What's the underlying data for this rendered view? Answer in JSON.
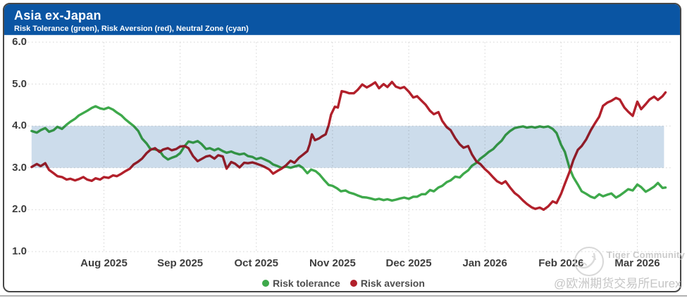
{
  "header": {
    "title": "Asia ex-Japan",
    "subtitle": "Risk Tolerance (green), Risk Aversion (red), Neutral Zone (cyan)"
  },
  "colors": {
    "header_bg": "#0A55A3",
    "risk_tolerance_green": "#3EA94B",
    "risk_aversion_red": "#B2202B",
    "neutral_zone_cyan": "#C8D9E9",
    "axis_text": "#3D3D3D",
    "gridline": "#D3D3D3"
  },
  "legend": {
    "items": [
      {
        "label": "Risk tolerance",
        "color": "#3EA94B"
      },
      {
        "label": "Risk aversion",
        "color": "#B2202B"
      }
    ]
  },
  "watermark": {
    "logo": "tiger-sketch-in-circle",
    "community": "Tiger Community",
    "handle": "@欧洲期货交易所Eurex"
  },
  "chart_data": {
    "type": "line",
    "title": "Asia ex-Japan",
    "subtitle": "Risk Tolerance (green), Risk Aversion (red), Neutral Zone (cyan)",
    "xlabel": "",
    "ylabel": "",
    "ylim": [
      1.0,
      6.0
    ],
    "y_ticks": [
      6,
      5,
      4,
      3,
      2,
      1
    ],
    "x_ticks": [
      "Aug 2025",
      "Sep 2025",
      "Oct 2025",
      "Nov 2025",
      "Dec 2025",
      "Jan 2026",
      "Feb 2026",
      "Mar 2026"
    ],
    "x_tick_t": [
      1,
      2,
      3,
      4,
      5,
      6,
      7,
      8
    ],
    "x_range": [
      0.05,
      8.35
    ],
    "grid": "dotted",
    "legend_position": "bottom-center",
    "neutral_zone": {
      "from": 3.0,
      "to": 4.0,
      "color": "#C8D9E9"
    },
    "series": [
      {
        "name": "Risk tolerance",
        "color": "#3EA94B",
        "points": [
          [
            0.05,
            3.88
          ],
          [
            0.12,
            3.84
          ],
          [
            0.17,
            3.9
          ],
          [
            0.23,
            3.95
          ],
          [
            0.28,
            3.86
          ],
          [
            0.34,
            3.9
          ],
          [
            0.39,
            3.98
          ],
          [
            0.45,
            3.93
          ],
          [
            0.51,
            4.03
          ],
          [
            0.56,
            4.1
          ],
          [
            0.62,
            4.17
          ],
          [
            0.67,
            4.25
          ],
          [
            0.73,
            4.31
          ],
          [
            0.78,
            4.36
          ],
          [
            0.84,
            4.43
          ],
          [
            0.89,
            4.47
          ],
          [
            0.95,
            4.42
          ],
          [
            1.0,
            4.4
          ],
          [
            1.06,
            4.44
          ],
          [
            1.12,
            4.39
          ],
          [
            1.17,
            4.32
          ],
          [
            1.23,
            4.25
          ],
          [
            1.28,
            4.16
          ],
          [
            1.34,
            4.07
          ],
          [
            1.39,
            4.0
          ],
          [
            1.45,
            3.88
          ],
          [
            1.5,
            3.7
          ],
          [
            1.56,
            3.58
          ],
          [
            1.61,
            3.45
          ],
          [
            1.67,
            3.44
          ],
          [
            1.73,
            3.41
          ],
          [
            1.78,
            3.28
          ],
          [
            1.84,
            3.2
          ],
          [
            1.89,
            3.24
          ],
          [
            1.95,
            3.28
          ],
          [
            2.0,
            3.35
          ],
          [
            2.06,
            3.52
          ],
          [
            2.11,
            3.63
          ],
          [
            2.17,
            3.6
          ],
          [
            2.23,
            3.64
          ],
          [
            2.28,
            3.57
          ],
          [
            2.34,
            3.45
          ],
          [
            2.39,
            3.47
          ],
          [
            2.45,
            3.42
          ],
          [
            2.5,
            3.46
          ],
          [
            2.56,
            3.4
          ],
          [
            2.61,
            3.36
          ],
          [
            2.67,
            3.39
          ],
          [
            2.72,
            3.35
          ],
          [
            2.78,
            3.32
          ],
          [
            2.84,
            3.34
          ],
          [
            2.89,
            3.28
          ],
          [
            2.95,
            3.26
          ],
          [
            3.0,
            3.21
          ],
          [
            3.06,
            3.24
          ],
          [
            3.11,
            3.2
          ],
          [
            3.17,
            3.15
          ],
          [
            3.22,
            3.08
          ],
          [
            3.28,
            3.04
          ],
          [
            3.33,
            3.0
          ],
          [
            3.39,
            3.03
          ],
          [
            3.45,
            3.0
          ],
          [
            3.5,
            3.03
          ],
          [
            3.56,
            3.06
          ],
          [
            3.61,
            3.0
          ],
          [
            3.67,
            2.87
          ],
          [
            3.72,
            2.96
          ],
          [
            3.78,
            2.92
          ],
          [
            3.83,
            2.84
          ],
          [
            3.89,
            2.71
          ],
          [
            3.95,
            2.59
          ],
          [
            4.0,
            2.57
          ],
          [
            4.06,
            2.51
          ],
          [
            4.11,
            2.44
          ],
          [
            4.17,
            2.46
          ],
          [
            4.22,
            2.41
          ],
          [
            4.28,
            2.38
          ],
          [
            4.33,
            2.34
          ],
          [
            4.39,
            2.3
          ],
          [
            4.45,
            2.29
          ],
          [
            4.5,
            2.27
          ],
          [
            4.56,
            2.24
          ],
          [
            4.61,
            2.26
          ],
          [
            4.67,
            2.23
          ],
          [
            4.72,
            2.25
          ],
          [
            4.78,
            2.22
          ],
          [
            4.83,
            2.24
          ],
          [
            4.89,
            2.27
          ],
          [
            4.94,
            2.29
          ],
          [
            5.0,
            2.26
          ],
          [
            5.06,
            2.31
          ],
          [
            5.11,
            2.31
          ],
          [
            5.17,
            2.37
          ],
          [
            5.22,
            2.37
          ],
          [
            5.28,
            2.47
          ],
          [
            5.33,
            2.44
          ],
          [
            5.39,
            2.53
          ],
          [
            5.44,
            2.57
          ],
          [
            5.5,
            2.66
          ],
          [
            5.55,
            2.7
          ],
          [
            5.61,
            2.79
          ],
          [
            5.67,
            2.77
          ],
          [
            5.72,
            2.86
          ],
          [
            5.78,
            2.94
          ],
          [
            5.83,
            3.05
          ],
          [
            5.89,
            3.12
          ],
          [
            5.94,
            3.22
          ],
          [
            6.0,
            3.3
          ],
          [
            6.05,
            3.38
          ],
          [
            6.11,
            3.45
          ],
          [
            6.16,
            3.55
          ],
          [
            6.22,
            3.65
          ],
          [
            6.27,
            3.78
          ],
          [
            6.33,
            3.88
          ],
          [
            6.39,
            3.95
          ],
          [
            6.44,
            3.97
          ],
          [
            6.5,
            3.99
          ],
          [
            6.55,
            3.96
          ],
          [
            6.61,
            3.98
          ],
          [
            6.66,
            3.96
          ],
          [
            6.72,
            3.99
          ],
          [
            6.77,
            3.97
          ],
          [
            6.83,
            3.99
          ],
          [
            6.89,
            3.93
          ],
          [
            6.94,
            3.83
          ],
          [
            7.0,
            3.55
          ],
          [
            7.05,
            3.38
          ],
          [
            7.11,
            3.0
          ],
          [
            7.16,
            2.78
          ],
          [
            7.22,
            2.6
          ],
          [
            7.27,
            2.44
          ],
          [
            7.33,
            2.38
          ],
          [
            7.39,
            2.31
          ],
          [
            7.44,
            2.28
          ],
          [
            7.5,
            2.37
          ],
          [
            7.55,
            2.32
          ],
          [
            7.61,
            2.36
          ],
          [
            7.66,
            2.39
          ],
          [
            7.72,
            2.29
          ],
          [
            7.77,
            2.34
          ],
          [
            7.83,
            2.42
          ],
          [
            7.88,
            2.49
          ],
          [
            7.94,
            2.46
          ],
          [
            8.0,
            2.6
          ],
          [
            8.05,
            2.54
          ],
          [
            8.11,
            2.43
          ],
          [
            8.16,
            2.48
          ],
          [
            8.22,
            2.55
          ],
          [
            8.27,
            2.64
          ],
          [
            8.33,
            2.52
          ],
          [
            8.37,
            2.53
          ]
        ]
      },
      {
        "name": "Risk aversion",
        "color": "#B2202B",
        "points": [
          [
            0.05,
            3.02
          ],
          [
            0.12,
            3.09
          ],
          [
            0.17,
            3.04
          ],
          [
            0.23,
            3.11
          ],
          [
            0.28,
            2.95
          ],
          [
            0.34,
            2.87
          ],
          [
            0.39,
            2.8
          ],
          [
            0.45,
            2.78
          ],
          [
            0.51,
            2.72
          ],
          [
            0.56,
            2.74
          ],
          [
            0.62,
            2.7
          ],
          [
            0.67,
            2.73
          ],
          [
            0.73,
            2.78
          ],
          [
            0.78,
            2.72
          ],
          [
            0.84,
            2.69
          ],
          [
            0.89,
            2.75
          ],
          [
            0.95,
            2.72
          ],
          [
            1.0,
            2.78
          ],
          [
            1.06,
            2.76
          ],
          [
            1.12,
            2.82
          ],
          [
            1.17,
            2.8
          ],
          [
            1.23,
            2.86
          ],
          [
            1.28,
            2.92
          ],
          [
            1.34,
            2.98
          ],
          [
            1.39,
            3.08
          ],
          [
            1.45,
            3.15
          ],
          [
            1.5,
            3.22
          ],
          [
            1.56,
            3.35
          ],
          [
            1.61,
            3.43
          ],
          [
            1.67,
            3.47
          ],
          [
            1.73,
            3.38
          ],
          [
            1.78,
            3.44
          ],
          [
            1.84,
            3.47
          ],
          [
            1.89,
            3.42
          ],
          [
            1.95,
            3.45
          ],
          [
            2.0,
            3.51
          ],
          [
            2.06,
            3.52
          ],
          [
            2.11,
            3.47
          ],
          [
            2.17,
            3.28
          ],
          [
            2.23,
            3.16
          ],
          [
            2.28,
            3.21
          ],
          [
            2.34,
            3.27
          ],
          [
            2.39,
            3.29
          ],
          [
            2.45,
            3.22
          ],
          [
            2.5,
            3.3
          ],
          [
            2.56,
            3.27
          ],
          [
            2.61,
            2.98
          ],
          [
            2.67,
            3.14
          ],
          [
            2.72,
            3.1
          ],
          [
            2.78,
            3.01
          ],
          [
            2.84,
            3.12
          ],
          [
            2.89,
            3.11
          ],
          [
            2.95,
            3.13
          ],
          [
            3.0,
            3.1
          ],
          [
            3.06,
            3.06
          ],
          [
            3.11,
            3.02
          ],
          [
            3.17,
            2.96
          ],
          [
            3.22,
            2.86
          ],
          [
            3.28,
            2.93
          ],
          [
            3.33,
            2.98
          ],
          [
            3.39,
            3.06
          ],
          [
            3.45,
            3.17
          ],
          [
            3.5,
            3.12
          ],
          [
            3.56,
            3.24
          ],
          [
            3.61,
            3.31
          ],
          [
            3.67,
            3.4
          ],
          [
            3.7,
            3.56
          ],
          [
            3.73,
            3.8
          ],
          [
            3.77,
            3.66
          ],
          [
            3.82,
            3.7
          ],
          [
            3.86,
            3.75
          ],
          [
            3.91,
            3.8
          ],
          [
            3.95,
            4.02
          ],
          [
            3.98,
            4.27
          ],
          [
            4.03,
            4.46
          ],
          [
            4.07,
            4.44
          ],
          [
            4.12,
            4.83
          ],
          [
            4.17,
            4.81
          ],
          [
            4.22,
            4.78
          ],
          [
            4.28,
            4.78
          ],
          [
            4.33,
            4.86
          ],
          [
            4.39,
            4.99
          ],
          [
            4.45,
            4.92
          ],
          [
            4.5,
            4.97
          ],
          [
            4.56,
            5.04
          ],
          [
            4.61,
            4.9
          ],
          [
            4.67,
            5.0
          ],
          [
            4.72,
            4.93
          ],
          [
            4.78,
            5.05
          ],
          [
            4.83,
            4.94
          ],
          [
            4.89,
            4.9
          ],
          [
            4.94,
            4.93
          ],
          [
            5.0,
            4.82
          ],
          [
            5.06,
            4.68
          ],
          [
            5.11,
            4.71
          ],
          [
            5.17,
            4.6
          ],
          [
            5.22,
            4.51
          ],
          [
            5.28,
            4.36
          ],
          [
            5.33,
            4.28
          ],
          [
            5.39,
            4.33
          ],
          [
            5.44,
            4.12
          ],
          [
            5.5,
            3.97
          ],
          [
            5.55,
            3.9
          ],
          [
            5.61,
            3.71
          ],
          [
            5.67,
            3.56
          ],
          [
            5.72,
            3.48
          ],
          [
            5.78,
            3.52
          ],
          [
            5.83,
            3.32
          ],
          [
            5.89,
            3.15
          ],
          [
            5.94,
            3.09
          ],
          [
            6.0,
            2.97
          ],
          [
            6.05,
            2.89
          ],
          [
            6.11,
            2.77
          ],
          [
            6.16,
            2.68
          ],
          [
            6.22,
            2.62
          ],
          [
            6.27,
            2.68
          ],
          [
            6.33,
            2.53
          ],
          [
            6.39,
            2.4
          ],
          [
            6.44,
            2.33
          ],
          [
            6.5,
            2.22
          ],
          [
            6.55,
            2.14
          ],
          [
            6.61,
            2.06
          ],
          [
            6.66,
            2.02
          ],
          [
            6.72,
            2.05
          ],
          [
            6.77,
            2.0
          ],
          [
            6.83,
            2.08
          ],
          [
            6.89,
            2.2
          ],
          [
            6.94,
            2.16
          ],
          [
            7.0,
            2.38
          ],
          [
            7.05,
            2.62
          ],
          [
            7.11,
            2.9
          ],
          [
            7.16,
            3.18
          ],
          [
            7.22,
            3.43
          ],
          [
            7.27,
            3.52
          ],
          [
            7.33,
            3.68
          ],
          [
            7.39,
            3.9
          ],
          [
            7.44,
            4.05
          ],
          [
            7.5,
            4.22
          ],
          [
            7.55,
            4.48
          ],
          [
            7.61,
            4.56
          ],
          [
            7.66,
            4.6
          ],
          [
            7.72,
            4.67
          ],
          [
            7.77,
            4.63
          ],
          [
            7.83,
            4.44
          ],
          [
            7.88,
            4.34
          ],
          [
            7.94,
            4.24
          ],
          [
            8.0,
            4.58
          ],
          [
            8.05,
            4.4
          ],
          [
            8.11,
            4.52
          ],
          [
            8.16,
            4.63
          ],
          [
            8.22,
            4.7
          ],
          [
            8.27,
            4.62
          ],
          [
            8.33,
            4.71
          ],
          [
            8.37,
            4.8
          ]
        ]
      }
    ]
  }
}
